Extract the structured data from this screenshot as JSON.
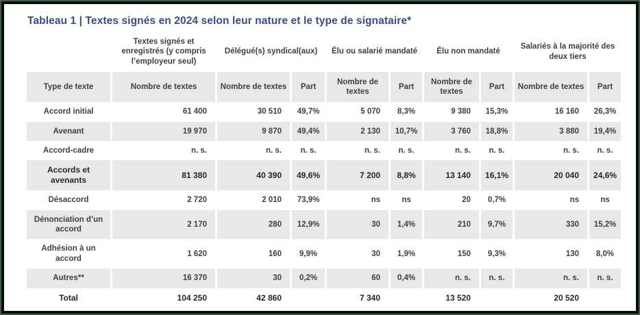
{
  "title": "Tableau 1 | Textes signés en 2024 selon leur nature et le type de signataire*",
  "colors": {
    "title_text": "#3b4a8a",
    "row_shade": "#e8e8e8",
    "body_text": "#3f3f3f",
    "frame_outer_green": "#3e5f45",
    "frame_inner_black": "#0b0b0b"
  },
  "table": {
    "group_headers": [
      {
        "label": "",
        "span": 1
      },
      {
        "label": "Textes signés et enregistrés (y compris l’employeur seul)",
        "span": 1
      },
      {
        "label": "Délégué(s) syndical(aux)",
        "span": 2
      },
      {
        "label": "Élu ou salarié mandaté",
        "span": 2
      },
      {
        "label": "Élu non mandaté",
        "span": 2
      },
      {
        "label": "Salariés à la majorité des deux tiers",
        "span": 2
      }
    ],
    "sub_headers": [
      "Type de texte",
      "Nombre de textes",
      "Nombre de textes",
      "Part",
      "Nombre de textes",
      "Part",
      "Nombre de textes",
      "Part",
      "Nombre de textes",
      "Part"
    ],
    "rows": [
      {
        "label": "Accord initial",
        "values": [
          "61 400",
          "30 510",
          "49,7%",
          "5 070",
          "8,3%",
          "9 380",
          "15,3%",
          "16 160",
          "26,3%"
        ],
        "shaded": false,
        "bold": false
      },
      {
        "label": "Avenant",
        "values": [
          "19 970",
          "9 870",
          "49,4%",
          "2 130",
          "10,7%",
          "3 760",
          "18,8%",
          "3 880",
          "19,4%"
        ],
        "shaded": true,
        "bold": false
      },
      {
        "label": "Accord-cadre",
        "values": [
          "n. s.",
          "n. s.",
          "n. s.",
          "n. s.",
          "n. s.",
          "n. s.",
          "n. s.",
          "n. s.",
          "n. s."
        ],
        "shaded": false,
        "bold": false
      },
      {
        "label": "Accords et avenants",
        "values": [
          "81 380",
          "40 390",
          "49,6%",
          "7 200",
          "8,8%",
          "13 140",
          "16,1%",
          "20 040",
          "24,6%"
        ],
        "shaded": true,
        "bold": true
      },
      {
        "label": "Désaccord",
        "values": [
          "2 720",
          "2 010",
          "73,9%",
          "ns",
          "ns",
          "20",
          "0,7%",
          "ns",
          "ns"
        ],
        "shaded": false,
        "bold": false
      },
      {
        "label": "Dénonciation d’un accord",
        "values": [
          "2 170",
          "280",
          "12,9%",
          "30",
          "1,4%",
          "210",
          "9,7%",
          "330",
          "15,2%"
        ],
        "shaded": true,
        "bold": false
      },
      {
        "label": "Adhésion à un accord",
        "values": [
          "1 620",
          "160",
          "9,9%",
          "30",
          "1,9%",
          "150",
          "9,3%",
          "130",
          "8,0%"
        ],
        "shaded": false,
        "bold": false
      },
      {
        "label": "Autres**",
        "values": [
          "16 370",
          "30",
          "0,2%",
          "60",
          "0,4%",
          "n. s.",
          "n. s.",
          "n. s.",
          "n. s."
        ],
        "shaded": true,
        "bold": false
      },
      {
        "label": "Total",
        "values": [
          "104 250",
          "42 860",
          "",
          "7 340",
          "",
          "13 520",
          "",
          "20 520",
          ""
        ],
        "shaded": false,
        "bold": true
      }
    ]
  }
}
